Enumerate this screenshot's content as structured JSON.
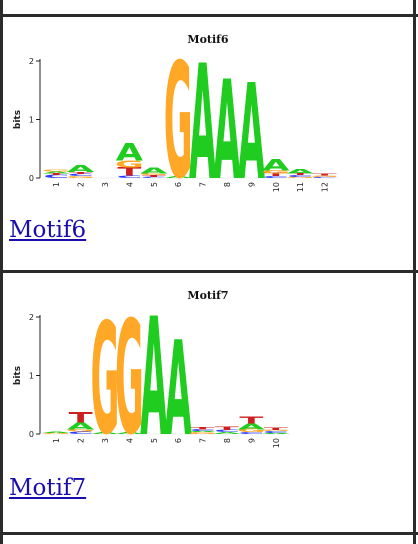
{
  "motifs": [
    {
      "title": "Motif6",
      "link_label": "Motif6",
      "ylabel": "bits",
      "y_ticks": [
        "0",
        "1",
        "2"
      ],
      "positions": [
        "1",
        "2",
        "3",
        "4",
        "5",
        "6",
        "7",
        "8",
        "9",
        "10",
        "11",
        "12"
      ],
      "ymax": 2,
      "columns": [
        [
          [
            "C",
            0.05
          ],
          [
            "T",
            0.03
          ],
          [
            "A",
            0.03
          ],
          [
            "G",
            0.03
          ]
        ],
        [
          [
            "G",
            0.03
          ],
          [
            "C",
            0.04
          ],
          [
            "T",
            0.03
          ],
          [
            "A",
            0.12
          ]
        ],
        [],
        [
          [
            "C",
            0.04
          ],
          [
            "T",
            0.14
          ],
          [
            "G",
            0.12
          ],
          [
            "A",
            0.3
          ]
        ],
        [
          [
            "C",
            0.02
          ],
          [
            "T",
            0.03
          ],
          [
            "G",
            0.03
          ],
          [
            "A",
            0.1
          ]
        ],
        [
          [
            "A",
            0.03
          ],
          [
            "G",
            1.95
          ]
        ],
        [
          [
            "A",
            1.95
          ]
        ],
        [
          [
            "A",
            1.68
          ]
        ],
        [
          [
            "A",
            1.62
          ]
        ],
        [
          [
            "C",
            0.03
          ],
          [
            "T",
            0.05
          ],
          [
            "G",
            0.05
          ],
          [
            "A",
            0.2
          ]
        ],
        [
          [
            "G",
            0.02
          ],
          [
            "C",
            0.03
          ],
          [
            "T",
            0.03
          ],
          [
            "A",
            0.08
          ]
        ],
        [
          [
            "C",
            0.02
          ],
          [
            "G",
            0.02
          ],
          [
            "T",
            0.03
          ]
        ]
      ]
    },
    {
      "title": "Motif7",
      "link_label": "Motif7",
      "ylabel": "bits",
      "y_ticks": [
        "0",
        "1",
        "2"
      ],
      "positions": [
        "1",
        "2",
        "3",
        "4",
        "5",
        "6",
        "7",
        "8",
        "9",
        "10"
      ],
      "ymax": 2,
      "columns": [
        [
          [
            "G",
            0.02
          ],
          [
            "A",
            0.02
          ]
        ],
        [
          [
            "C",
            0.04
          ],
          [
            "G",
            0.04
          ],
          [
            "A",
            0.12
          ],
          [
            "T",
            0.18
          ]
        ],
        [
          [
            "A",
            0.03
          ],
          [
            "G",
            1.88
          ]
        ],
        [
          [
            "A",
            0.03
          ],
          [
            "G",
            1.92
          ]
        ],
        [
          [
            "A",
            2.0
          ]
        ],
        [
          [
            "A",
            1.6
          ]
        ],
        [
          [
            "G",
            0.03
          ],
          [
            "A",
            0.02
          ],
          [
            "C",
            0.03
          ],
          [
            "T",
            0.04
          ]
        ],
        [
          [
            "A",
            0.03
          ],
          [
            "C",
            0.04
          ],
          [
            "T",
            0.05
          ]
        ],
        [
          [
            "C",
            0.03
          ],
          [
            "G",
            0.05
          ],
          [
            "A",
            0.1
          ],
          [
            "T",
            0.12
          ]
        ],
        [
          [
            "A",
            0.02
          ],
          [
            "C",
            0.03
          ],
          [
            "G",
            0.02
          ],
          [
            "T",
            0.04
          ]
        ]
      ]
    }
  ],
  "colors": {
    "A": "#1fcc1f",
    "C": "#2b3bff",
    "G": "#ffa726",
    "T": "#cc1f1f",
    "axis": "#222222",
    "link": "#1a0dab",
    "border": "#2b2b2b"
  }
}
